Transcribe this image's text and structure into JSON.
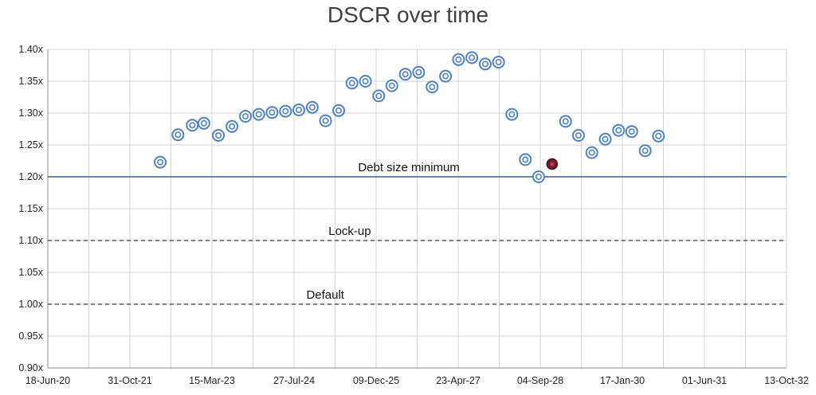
{
  "chart_data": {
    "type": "scatter",
    "title": "DSCR over time",
    "xlabel": "",
    "ylabel": "",
    "x_ticks": [
      "18-Jun-20",
      "31-Oct-21",
      "15-Mar-23",
      "27-Jul-24",
      "09-Dec-25",
      "23-Apr-27",
      "04-Sep-28",
      "17-Jan-30",
      "01-Jun-31",
      "13-Oct-32"
    ],
    "y_ticks": [
      "0.90x",
      "0.95x",
      "1.00x",
      "1.05x",
      "1.10x",
      "1.15x",
      "1.20x",
      "1.25x",
      "1.30x",
      "1.35x",
      "1.40x"
    ],
    "xlim": [
      "18-Jun-20",
      "13-Oct-32"
    ],
    "ylim": [
      0.9,
      1.4
    ],
    "grid": "vertical and horizontal",
    "legend": "none",
    "reference_lines": [
      {
        "label": "Debt size minimum",
        "y": 1.2,
        "style": "solid",
        "color": "#3a5f8a"
      },
      {
        "label": "Lock-up",
        "y": 1.1,
        "style": "dashed",
        "color": "#595959"
      },
      {
        "label": "Default",
        "y": 1.0,
        "style": "dashed",
        "color": "#595959"
      }
    ],
    "series": [
      {
        "marker_color": "#4f81bd",
        "highlight_color": "#7b1c2e",
        "highlight_index": 29,
        "points": [
          {
            "x": "04-May-22",
            "y": 1.223
          },
          {
            "x": "20-Aug-22",
            "y": 1.266
          },
          {
            "x": "15-Nov-22",
            "y": 1.281
          },
          {
            "x": "25-Jan-23",
            "y": 1.284
          },
          {
            "x": "23-Apr-23",
            "y": 1.265
          },
          {
            "x": "15-Jul-23",
            "y": 1.279
          },
          {
            "x": "05-Oct-23",
            "y": 1.295
          },
          {
            "x": "25-Dec-23",
            "y": 1.298
          },
          {
            "x": "15-Mar-24",
            "y": 1.301
          },
          {
            "x": "05-Jun-24",
            "y": 1.303
          },
          {
            "x": "25-Aug-24",
            "y": 1.305
          },
          {
            "x": "15-Nov-24",
            "y": 1.309
          },
          {
            "x": "04-Feb-25",
            "y": 1.288
          },
          {
            "x": "25-Apr-25",
            "y": 1.304
          },
          {
            "x": "15-Jul-25",
            "y": 1.347
          },
          {
            "x": "05-Oct-25",
            "y": 1.35
          },
          {
            "x": "25-Dec-25",
            "y": 1.327
          },
          {
            "x": "15-Mar-26",
            "y": 1.343
          },
          {
            "x": "05-Jun-26",
            "y": 1.361
          },
          {
            "x": "25-Aug-26",
            "y": 1.364
          },
          {
            "x": "15-Nov-26",
            "y": 1.341
          },
          {
            "x": "05-Feb-27",
            "y": 1.358
          },
          {
            "x": "25-Apr-27",
            "y": 1.384
          },
          {
            "x": "15-Jul-27",
            "y": 1.387
          },
          {
            "x": "05-Oct-27",
            "y": 1.377
          },
          {
            "x": "25-Dec-27",
            "y": 1.38
          },
          {
            "x": "15-Mar-28",
            "y": 1.298
          },
          {
            "x": "05-Jun-28",
            "y": 1.227
          },
          {
            "x": "25-Aug-28",
            "y": 1.2
          },
          {
            "x": "15-Nov-28",
            "y": 1.22
          },
          {
            "x": "05-Feb-29",
            "y": 1.287
          },
          {
            "x": "25-Apr-29",
            "y": 1.265
          },
          {
            "x": "15-Jul-29",
            "y": 1.238
          },
          {
            "x": "05-Oct-29",
            "y": 1.259
          },
          {
            "x": "25-Dec-29",
            "y": 1.273
          },
          {
            "x": "15-Mar-30",
            "y": 1.271
          },
          {
            "x": "05-Jun-30",
            "y": 1.241
          },
          {
            "x": "25-Aug-30",
            "y": 1.264
          }
        ]
      }
    ]
  }
}
